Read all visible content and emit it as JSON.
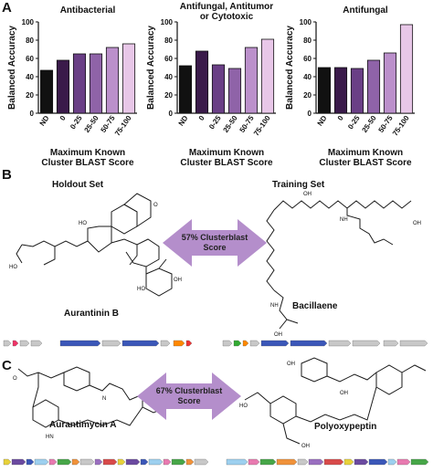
{
  "panels": {
    "a": "A",
    "b": "B",
    "c": "C"
  },
  "chart_data": [
    {
      "type": "bar",
      "title": "Antibacterial",
      "categories": [
        "ND",
        "0",
        "0-25",
        "25-50",
        "50-75",
        "75-100"
      ],
      "values": [
        47,
        58,
        65,
        65,
        72,
        76
      ],
      "colors": [
        "#111111",
        "#3a1a4a",
        "#6a3f86",
        "#8f63a8",
        "#bb90cb",
        "#e8c7e8"
      ],
      "ylabel": "Balanced Accuracy",
      "ylim": [
        0,
        100
      ],
      "yticks": [
        0,
        20,
        40,
        60,
        80,
        100
      ],
      "xlabel_lines": [
        "Maximum Known",
        "Cluster BLAST Score"
      ]
    },
    {
      "type": "bar",
      "title_lines": [
        "Antifungal, Antitumor",
        "or Cytotoxic"
      ],
      "categories": [
        "ND",
        "0",
        "0-25",
        "25-50",
        "50-75",
        "75-100"
      ],
      "values": [
        52,
        68,
        53,
        49,
        72,
        81
      ],
      "colors": [
        "#111111",
        "#3a1a4a",
        "#6a3f86",
        "#8f63a8",
        "#bb90cb",
        "#e8c7e8"
      ],
      "ylabel": "Balanced Accuracy",
      "ylim": [
        0,
        100
      ],
      "yticks": [
        0,
        20,
        40,
        60,
        80,
        100
      ],
      "xlabel_lines": [
        "Maximum Known",
        "Cluster BLAST Score"
      ]
    },
    {
      "type": "bar",
      "title": "Antifungal",
      "categories": [
        "ND",
        "0",
        "0-25",
        "25-50",
        "50-75",
        "75-100"
      ],
      "values": [
        50,
        50,
        49,
        58,
        66,
        97
      ],
      "colors": [
        "#111111",
        "#3a1a4a",
        "#6a3f86",
        "#8f63a8",
        "#bb90cb",
        "#e8c7e8"
      ],
      "ylabel": "Balanced Accuracy",
      "ylim": [
        0,
        100
      ],
      "yticks": [
        0,
        20,
        40,
        60,
        80,
        100
      ],
      "xlabel_lines": [
        "Maximum Known",
        "Cluster BLAST Score"
      ]
    }
  ],
  "panel_b": {
    "holdout_label": "Holdout Set",
    "training_label": "Training Set",
    "arrow_text_line1": "57% Clusterblast",
    "arrow_text_line2": "Score",
    "left_compound": "Aurantinin B",
    "right_compound": "Bacillaene"
  },
  "panel_c": {
    "arrow_text_line1": "67% Clusterblast",
    "arrow_text_line2": "Score",
    "left_compound": "Aurantimycin A",
    "right_compound": "Polyoxypeptin"
  },
  "atom_labels": {
    "oh": "OH",
    "ho": "HO",
    "o": "O",
    "nh": "NH",
    "n": "N",
    "h": "H",
    "hn": "HN",
    "och3": "O"
  },
  "colors": {
    "arrow": "#b48ecb",
    "gene_blue": "#3b57b8",
    "gene_gray": "#c8c8c8"
  }
}
